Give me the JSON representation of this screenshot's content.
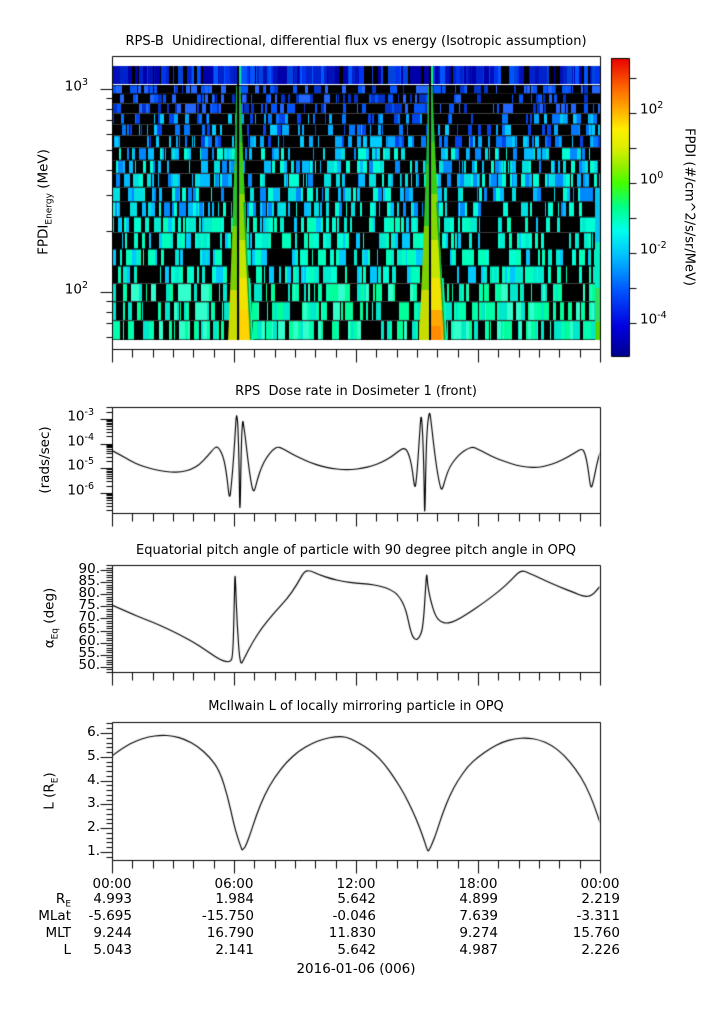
{
  "figure": {
    "date_label": "2016-01-06 (006)",
    "background": "#ffffff",
    "text_color": "#000000"
  },
  "xaxis": {
    "tick_labels": [
      "00:00",
      "06:00",
      "12:00",
      "18:00",
      "00:00"
    ],
    "tick_hours": [
      0,
      6,
      12,
      18,
      24
    ]
  },
  "ephemeris_table": {
    "rows": [
      {
        "label": {
          "pre": "R",
          "sub": "E"
        },
        "values": [
          "4.993",
          "1.984",
          "5.642",
          "4.899",
          "2.219"
        ]
      },
      {
        "label": {
          "pre": "MLat",
          "sub": ""
        },
        "values": [
          "-5.695",
          "-15.750",
          "-0.046",
          "7.639",
          "-3.311"
        ]
      },
      {
        "label": {
          "pre": "MLT",
          "sub": ""
        },
        "values": [
          "9.244",
          "16.790",
          "11.830",
          "9.274",
          "15.760"
        ]
      },
      {
        "label": {
          "pre": "L",
          "sub": ""
        },
        "values": [
          "5.043",
          "2.141",
          "5.642",
          "4.987",
          "2.226"
        ]
      }
    ]
  },
  "chart_data": [
    {
      "id": "spectrogram",
      "type": "heatmap",
      "title": "RPS-B  Unidirectional, differential flux vs energy (Isotropic assumption)",
      "ylabel": {
        "pre": "FPDI",
        "sub": "Energy",
        "post": " (MeV)"
      },
      "yscale": "log",
      "yrange_mev": [
        58,
        1450
      ],
      "yticks": [
        {
          "mant": "10",
          "exp": "3",
          "value_mev": 1000
        },
        {
          "mant": "10",
          "exp": "2",
          "value_mev": 100
        }
      ],
      "xrange_hours": [
        0,
        24
      ],
      "content_summary": "Speckled low flux (black with blue/cyan vertical striping, flux increasing toward lower energy); two bright green-yellow perigee flux plumes that widen toward low energy, each split by a narrow vertical data-gap line; green column at right edge",
      "events": [
        {
          "time_hours": 6.25,
          "gap_line": true
        },
        {
          "time_hours": 15.69,
          "gap_line": true
        }
      ],
      "colorbar": {
        "label": "FPDI (#/cm^2/s/sr/MeV)",
        "scale": "log",
        "range_log10": [
          -5,
          3.6
        ],
        "colormap": "rainbow",
        "ticks": [
          {
            "mant": "10",
            "exp": "2",
            "log10": 2
          },
          {
            "mant": "10",
            "exp": "0",
            "log10": 0
          },
          {
            "mant": "10",
            "exp": "-2",
            "log10": -2
          },
          {
            "mant": "10",
            "exp": "-4",
            "log10": -4
          }
        ]
      }
    },
    {
      "id": "dose_rate",
      "type": "line",
      "title": "RPS  Dose rate in Dosimeter 1 (front)",
      "ylabel": "(rads/sec)",
      "yscale": "log",
      "yrange_log10": [
        -6.8,
        -2.5
      ],
      "yticks": [
        {
          "mant": "10",
          "exp": "-3",
          "log10": -3
        },
        {
          "mant": "10",
          "exp": "-4",
          "log10": -4
        },
        {
          "mant": "10",
          "exp": "-5",
          "log10": -5
        },
        {
          "mant": "10",
          "exp": "-6",
          "log10": -6
        }
      ],
      "series": [
        {
          "name": "dose_rate",
          "units": "rads/sec",
          "points_hour_log10": [
            [
              0,
              -4.28
            ],
            [
              0.4,
              -4.45
            ],
            [
              0.9,
              -4.7
            ],
            [
              1.4,
              -4.88
            ],
            [
              1.9,
              -5.01
            ],
            [
              2.4,
              -5.1
            ],
            [
              2.9,
              -5.16
            ],
            [
              3.4,
              -5.15
            ],
            [
              3.9,
              -5.05
            ],
            [
              4.3,
              -4.85
            ],
            [
              4.7,
              -4.5
            ],
            [
              5.0,
              -4.2
            ],
            [
              5.15,
              -4.12
            ],
            [
              5.3,
              -4.22
            ],
            [
              5.5,
              -4.6
            ],
            [
              5.65,
              -5.3
            ],
            [
              5.78,
              -6.35
            ],
            [
              5.88,
              -5.6
            ],
            [
              5.98,
              -4.6
            ],
            [
              6.07,
              -3.4
            ],
            [
              6.1,
              -3.0
            ],
            [
              6.13,
              -2.82
            ],
            [
              6.16,
              -3.0
            ],
            [
              6.19,
              -3.2
            ],
            [
              6.25,
              -4.8
            ],
            [
              6.29,
              -7.3
            ],
            [
              6.36,
              -4.0
            ],
            [
              6.41,
              -3.2
            ],
            [
              6.44,
              -3.06
            ],
            [
              6.47,
              -3.25
            ],
            [
              6.52,
              -3.5
            ],
            [
              6.62,
              -4.2
            ],
            [
              6.75,
              -5.1
            ],
            [
              6.9,
              -5.85
            ],
            [
              7.0,
              -5.95
            ],
            [
              7.15,
              -5.45
            ],
            [
              7.35,
              -4.95
            ],
            [
              7.6,
              -4.55
            ],
            [
              7.9,
              -4.25
            ],
            [
              8.15,
              -4.12
            ],
            [
              8.4,
              -4.2
            ],
            [
              8.8,
              -4.4
            ],
            [
              9.3,
              -4.6
            ],
            [
              9.8,
              -4.78
            ],
            [
              10.3,
              -4.92
            ],
            [
              10.8,
              -5.0
            ],
            [
              11.3,
              -5.05
            ],
            [
              11.8,
              -5.05
            ],
            [
              12.3,
              -5.0
            ],
            [
              12.8,
              -4.9
            ],
            [
              13.3,
              -4.75
            ],
            [
              13.8,
              -4.5
            ],
            [
              14.1,
              -4.3
            ],
            [
              14.35,
              -4.17
            ],
            [
              14.55,
              -4.3
            ],
            [
              14.75,
              -4.9
            ],
            [
              14.9,
              -5.95
            ],
            [
              15.0,
              -5.2
            ],
            [
              15.1,
              -4.0
            ],
            [
              15.17,
              -3.1
            ],
            [
              15.2,
              -2.88
            ],
            [
              15.24,
              -3.05
            ],
            [
              15.3,
              -4.0
            ],
            [
              15.35,
              -5.5
            ],
            [
              15.38,
              -7.3
            ],
            [
              15.45,
              -4.2
            ],
            [
              15.52,
              -3.2
            ],
            [
              15.58,
              -2.85
            ],
            [
              15.62,
              -2.73
            ],
            [
              15.66,
              -2.9
            ],
            [
              15.72,
              -3.3
            ],
            [
              15.8,
              -3.9
            ],
            [
              15.95,
              -4.9
            ],
            [
              16.1,
              -5.6
            ],
            [
              16.22,
              -5.95
            ],
            [
              16.4,
              -5.4
            ],
            [
              16.6,
              -4.95
            ],
            [
              16.9,
              -4.6
            ],
            [
              17.2,
              -4.35
            ],
            [
              17.5,
              -4.2
            ],
            [
              17.75,
              -4.13
            ],
            [
              18.0,
              -4.22
            ],
            [
              18.4,
              -4.4
            ],
            [
              18.9,
              -4.6
            ],
            [
              19.4,
              -4.75
            ],
            [
              19.9,
              -4.88
            ],
            [
              20.4,
              -4.95
            ],
            [
              20.9,
              -4.97
            ],
            [
              21.4,
              -4.9
            ],
            [
              21.9,
              -4.75
            ],
            [
              22.4,
              -4.55
            ],
            [
              22.8,
              -4.35
            ],
            [
              23.1,
              -4.2
            ],
            [
              23.25,
              -4.35
            ],
            [
              23.4,
              -4.9
            ],
            [
              23.55,
              -5.9
            ],
            [
              23.68,
              -5.5
            ],
            [
              23.85,
              -4.8
            ],
            [
              24,
              -4.35
            ]
          ]
        }
      ]
    },
    {
      "id": "pitch_angle",
      "type": "line",
      "title": "Equatorial pitch angle of particle with 90 degree pitch angle in OPQ",
      "ylabel": {
        "pre": "α",
        "sub": "Eq",
        "post": " (deg)"
      },
      "yscale": "linear",
      "yrange": [
        48,
        92
      ],
      "yticks_labels": [
        "90.",
        "85.",
        "80.",
        "75.",
        "70.",
        "65.",
        "60.",
        "55.",
        "50."
      ],
      "ytick_values": [
        90,
        85,
        80,
        75,
        70,
        65,
        60,
        55,
        50
      ],
      "series": [
        {
          "name": "alpha_eq",
          "units": "deg",
          "points_hour_deg": [
            [
              0,
              75.5
            ],
            [
              0.8,
              72.5
            ],
            [
              1.6,
              69.8
            ],
            [
              2.4,
              67
            ],
            [
              3.2,
              63.8
            ],
            [
              4,
              60.3
            ],
            [
              4.6,
              57
            ],
            [
              5.1,
              54
            ],
            [
              5.5,
              52.3
            ],
            [
              5.8,
              52
            ],
            [
              5.95,
              54
            ],
            [
              6.02,
              80
            ],
            [
              6.05,
              89
            ],
            [
              6.08,
              84
            ],
            [
              6.15,
              68
            ],
            [
              6.3,
              50.2
            ],
            [
              6.5,
              53.5
            ],
            [
              6.9,
              60
            ],
            [
              7.4,
              66.5
            ],
            [
              8,
              72.5
            ],
            [
              8.6,
              78
            ],
            [
              9.1,
              84
            ],
            [
              9.45,
              89.5
            ],
            [
              9.75,
              89.8
            ],
            [
              10.2,
              88
            ],
            [
              10.8,
              86.3
            ],
            [
              11.4,
              85.2
            ],
            [
              12,
              84.6
            ],
            [
              12.6,
              84.2
            ],
            [
              13.2,
              83.4
            ],
            [
              13.7,
              82
            ],
            [
              14.1,
              79.5
            ],
            [
              14.45,
              74
            ],
            [
              14.7,
              64
            ],
            [
              14.9,
              61
            ],
            [
              15.1,
              61.8
            ],
            [
              15.3,
              66
            ],
            [
              15.44,
              85
            ],
            [
              15.48,
              89
            ],
            [
              15.52,
              84
            ],
            [
              15.65,
              78
            ],
            [
              15.9,
              71
            ],
            [
              16.2,
              68.3
            ],
            [
              16.5,
              68
            ],
            [
              16.9,
              69
            ],
            [
              17.5,
              72
            ],
            [
              18.2,
              76
            ],
            [
              19,
              81
            ],
            [
              19.6,
              85.5
            ],
            [
              20.1,
              90
            ],
            [
              20.5,
              88.8
            ],
            [
              21.2,
              86
            ],
            [
              22,
              83
            ],
            [
              22.7,
              80.8
            ],
            [
              23.2,
              79
            ],
            [
              23.6,
              79.3
            ],
            [
              24,
              83.3
            ]
          ]
        }
      ]
    },
    {
      "id": "mcilwain_l",
      "type": "line",
      "title": "McIlwain L of locally mirroring particle in OPQ",
      "ylabel": {
        "pre": "L (R",
        "sub": "E",
        "post": ")"
      },
      "yscale": "linear",
      "yrange": [
        0.67,
        6.46
      ],
      "yticks_labels": [
        "6.",
        "5.",
        "4.",
        "3.",
        "2.",
        "1."
      ],
      "ytick_values": [
        6,
        5,
        4,
        3,
        2,
        1
      ],
      "series": [
        {
          "name": "mcilwain_l",
          "units": "Re",
          "points_hour_l": [
            [
              0,
              5.04
            ],
            [
              0.6,
              5.42
            ],
            [
              1.2,
              5.68
            ],
            [
              1.8,
              5.84
            ],
            [
              2.4,
              5.91
            ],
            [
              3.0,
              5.88
            ],
            [
              3.6,
              5.73
            ],
            [
              4.2,
              5.45
            ],
            [
              4.8,
              5.0
            ],
            [
              5.3,
              4.4
            ],
            [
              5.7,
              3.3
            ],
            [
              6.0,
              2.14
            ],
            [
              6.2,
              1.55
            ],
            [
              6.35,
              1.2
            ],
            [
              6.4,
              1.07
            ],
            [
              6.45,
              1.12
            ],
            [
              6.55,
              1.2
            ],
            [
              6.8,
              1.75
            ],
            [
              7.1,
              2.55
            ],
            [
              7.5,
              3.4
            ],
            [
              8.0,
              4.15
            ],
            [
              8.6,
              4.8
            ],
            [
              9.2,
              5.25
            ],
            [
              9.8,
              5.55
            ],
            [
              10.4,
              5.75
            ],
            [
              11.0,
              5.85
            ],
            [
              11.5,
              5.85
            ],
            [
              12.0,
              5.64
            ],
            [
              12.4,
              5.45
            ],
            [
              12.9,
              5.15
            ],
            [
              13.4,
              4.7
            ],
            [
              13.9,
              4.1
            ],
            [
              14.4,
              3.4
            ],
            [
              14.8,
              2.7
            ],
            [
              15.1,
              2.1
            ],
            [
              15.35,
              1.5
            ],
            [
              15.5,
              1.1
            ],
            [
              15.55,
              1.02
            ],
            [
              15.6,
              1.1
            ],
            [
              15.75,
              1.35
            ],
            [
              15.95,
              1.8
            ],
            [
              16.25,
              2.6
            ],
            [
              16.6,
              3.35
            ],
            [
              17.0,
              4.0
            ],
            [
              17.5,
              4.6
            ],
            [
              18.0,
              4.99
            ],
            [
              18.6,
              5.35
            ],
            [
              19.2,
              5.62
            ],
            [
              19.8,
              5.76
            ],
            [
              20.4,
              5.8
            ],
            [
              21.0,
              5.72
            ],
            [
              21.6,
              5.5
            ],
            [
              22.2,
              5.1
            ],
            [
              22.8,
              4.5
            ],
            [
              23.3,
              3.8
            ],
            [
              23.7,
              3.0
            ],
            [
              24,
              2.23
            ]
          ]
        }
      ]
    }
  ]
}
